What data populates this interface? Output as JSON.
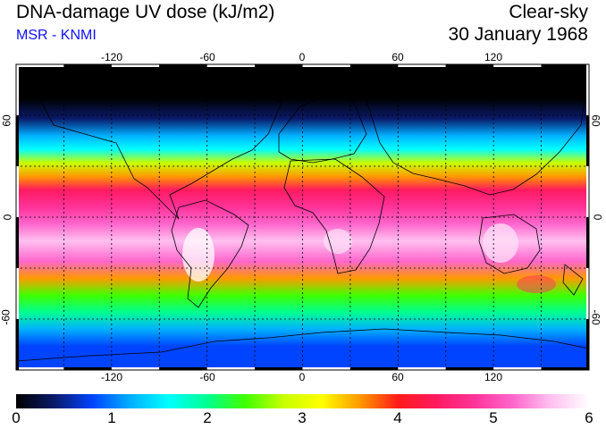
{
  "header": {
    "title": "DNA-damage UV dose (kJ/m2)",
    "source": "MSR - KNMI",
    "sky_condition": "Clear-sky",
    "date": "30 January 1968"
  },
  "map": {
    "projection": "equirectangular",
    "lon_range": [
      -180,
      180
    ],
    "lat_range": [
      -90,
      90
    ],
    "lon_ticks": [
      "-120",
      "-60",
      "0",
      "60",
      "120"
    ],
    "lat_ticks_left": [
      "60",
      "0",
      "-60"
    ],
    "lat_ticks_right": [
      "60",
      "0",
      "-60"
    ],
    "grid": "dotted every 30 degrees",
    "dose_profile": [
      {
        "lat": 90,
        "dose": 0.0
      },
      {
        "lat": 70,
        "dose": 0.05
      },
      {
        "lat": 58,
        "dose": 0.3
      },
      {
        "lat": 48,
        "dose": 1.0
      },
      {
        "lat": 40,
        "dose": 1.7
      },
      {
        "lat": 32,
        "dose": 2.6
      },
      {
        "lat": 24,
        "dose": 3.5
      },
      {
        "lat": 16,
        "dose": 4.4
      },
      {
        "lat": 6,
        "dose": 4.9
      },
      {
        "lat": -4,
        "dose": 5.3
      },
      {
        "lat": -14,
        "dose": 5.4
      },
      {
        "lat": -26,
        "dose": 5.0
      },
      {
        "lat": -36,
        "dose": 3.6
      },
      {
        "lat": -46,
        "dose": 2.4
      },
      {
        "lat": -56,
        "dose": 1.8
      },
      {
        "lat": -66,
        "dose": 1.2
      },
      {
        "lat": -76,
        "dose": 0.9
      },
      {
        "lat": -90,
        "dose": 0.7
      }
    ]
  },
  "colorbar": {
    "min": 0,
    "max": 6,
    "tick_labels": [
      "0",
      "1",
      "2",
      "3",
      "4",
      "5",
      "6"
    ],
    "stops": [
      "#000000",
      "#0a1a6a",
      "#0044ff",
      "#00b0ff",
      "#00ffff",
      "#00ff90",
      "#40ff00",
      "#c8ff00",
      "#ffff00",
      "#ff9900",
      "#ff1a1a",
      "#ff1a60",
      "#ff3399",
      "#ff66cc",
      "#ffc0f0",
      "#ffffff"
    ]
  }
}
